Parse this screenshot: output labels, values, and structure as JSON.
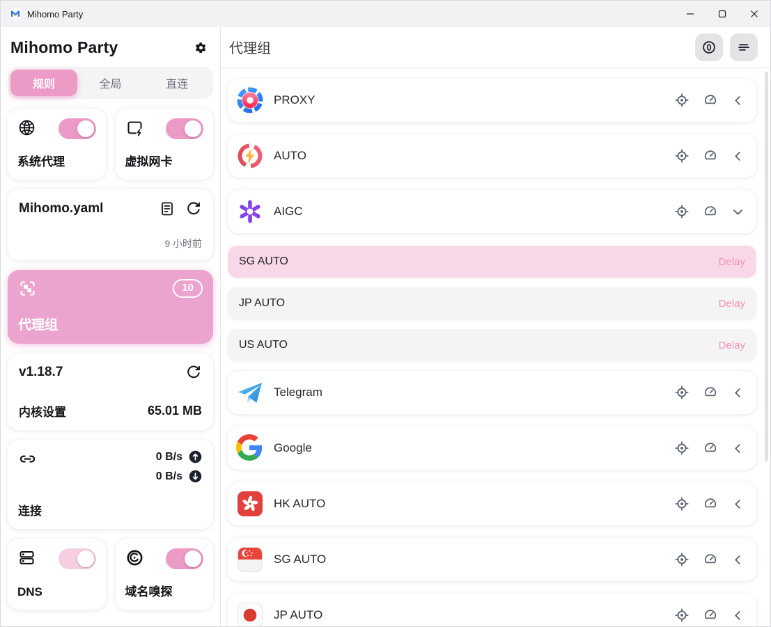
{
  "window": {
    "title": "Mihomo Party"
  },
  "sidebar": {
    "title": "Mihomo Party",
    "tabs": [
      {
        "label": "规则",
        "active": true
      },
      {
        "label": "全局",
        "active": false
      },
      {
        "label": "直连",
        "active": false
      }
    ],
    "system_proxy": {
      "label": "系统代理",
      "enabled": true
    },
    "tun": {
      "label": "虚拟网卡",
      "enabled": true
    },
    "profile": {
      "name": "Mihomo.yaml",
      "updated": "9 小时前"
    },
    "proxy_groups": {
      "label": "代理组",
      "badge": "10"
    },
    "core": {
      "version": "v1.18.7",
      "label": "内核设置",
      "memory": "65.01 MB"
    },
    "connections": {
      "label": "连接",
      "upload": "0 B/s",
      "download": "0 B/s"
    },
    "dns": {
      "label": "DNS",
      "enabled": true
    },
    "sniffer": {
      "label": "域名嗅探",
      "enabled": true
    }
  },
  "main": {
    "title": "代理组",
    "groups": [
      {
        "name": "PROXY",
        "icon": "proxy",
        "expanded": false
      },
      {
        "name": "AUTO",
        "icon": "auto",
        "expanded": false
      },
      {
        "name": "AIGC",
        "icon": "openai",
        "expanded": true,
        "proxies": [
          {
            "name": "SG AUTO",
            "delay_label": "Delay",
            "selected": true
          },
          {
            "name": "JP AUTO",
            "delay_label": "Delay",
            "selected": false
          },
          {
            "name": "US AUTO",
            "delay_label": "Delay",
            "selected": false
          }
        ]
      },
      {
        "name": "Telegram",
        "icon": "telegram",
        "expanded": false
      },
      {
        "name": "Google",
        "icon": "google",
        "expanded": false
      },
      {
        "name": "HK AUTO",
        "icon": "flag-hk",
        "expanded": false
      },
      {
        "name": "SG AUTO",
        "icon": "flag-sg",
        "expanded": false
      },
      {
        "name": "JP AUTO",
        "icon": "flag-jp",
        "expanded": false
      }
    ]
  },
  "colors": {
    "accent": "#ec9ac6",
    "accent_card": "#eba4cd",
    "delay_text": "#ef93ba",
    "selected_item_bg": "#f8d8e8",
    "item_bg": "#f4f4f5",
    "header_button_bg": "#e4e4e7",
    "titlebar_bg": "#f2f2f4"
  }
}
